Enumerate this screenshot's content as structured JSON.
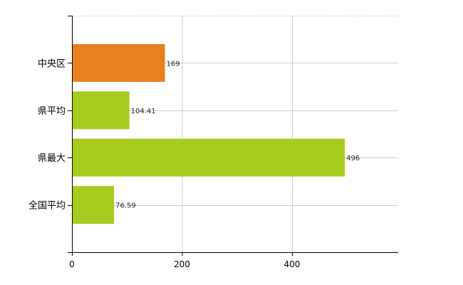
{
  "chart_data": {
    "type": "bar",
    "orientation": "horizontal",
    "title": "",
    "xlabel": "",
    "ylabel": "",
    "categories": [
      "中央区",
      "県平均",
      "県最大",
      "全国平均"
    ],
    "values": [
      169,
      104.41,
      496,
      76.59
    ],
    "value_labels": [
      "169",
      "104.41",
      "496",
      "76.59"
    ],
    "xlim": [
      0,
      593
    ],
    "xticks": [
      0,
      200,
      400
    ],
    "xtick_labels": [
      "0",
      "200",
      "400"
    ],
    "grid": true,
    "legend": "none",
    "colors": {
      "中央区": "#e8801e",
      "県平均": "#a7cb1e",
      "県最大": "#a7cb1e",
      "全国平均": "#a7cb1e",
      "grid": "#cccccc",
      "axis": "#000000"
    }
  }
}
